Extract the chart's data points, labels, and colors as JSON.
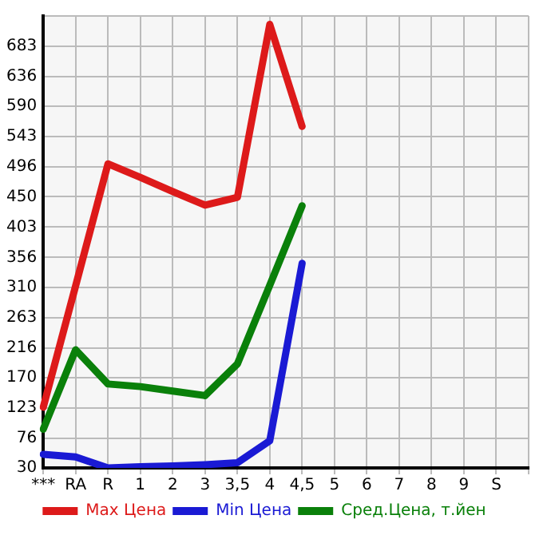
{
  "chart_data": {
    "type": "line",
    "categories": [
      "***",
      "RA",
      "R",
      "1",
      "2",
      "3",
      "3,5",
      "4",
      "4,5",
      "5",
      "6",
      "7",
      "8",
      "9",
      "S",
      null
    ],
    "series": [
      {
        "name": "Max Цена",
        "color": "#dd1a1a",
        "values": [
          124,
          312,
          501,
          480,
          458,
          437,
          449,
          717,
          559,
          null,
          null,
          null,
          null,
          null,
          null,
          null
        ]
      },
      {
        "name": "Min Цена",
        "color": "#1a1ad4",
        "values": [
          51,
          47,
          30,
          32,
          33,
          35,
          38,
          72,
          347,
          null,
          null,
          null,
          null,
          null,
          null,
          null
        ]
      },
      {
        "name": "Сред.Цена, т.йен",
        "color": "#0a800a",
        "values": [
          90,
          213,
          160,
          156,
          149,
          142,
          191,
          313,
          436,
          null,
          null,
          null,
          null,
          null,
          null,
          null
        ]
      }
    ],
    "ylim": [
      30,
      730
    ],
    "yticks": [
      30,
      76,
      123,
      170,
      216,
      263,
      310,
      356,
      403,
      450,
      496,
      543,
      590,
      636,
      683,
      {
        "value": 730,
        "label": null
      }
    ],
    "grid": true,
    "legend": "bottom",
    "marker": "none",
    "line_style": "solid"
  }
}
